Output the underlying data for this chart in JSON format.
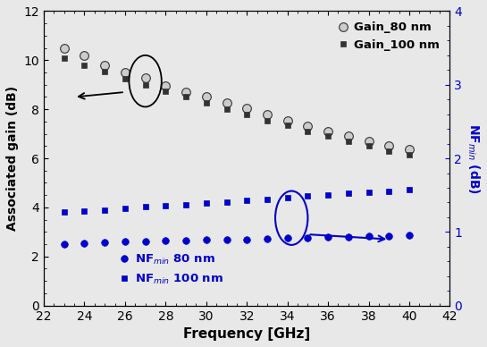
{
  "freq": [
    23,
    24,
    25,
    26,
    27,
    28,
    29,
    30,
    31,
    32,
    33,
    34,
    35,
    36,
    37,
    38,
    39,
    40
  ],
  "gain_80nm": [
    10.5,
    10.2,
    9.8,
    9.5,
    9.3,
    8.95,
    8.7,
    8.5,
    8.25,
    8.05,
    7.8,
    7.55,
    7.3,
    7.1,
    6.9,
    6.7,
    6.5,
    6.35
  ],
  "gain_100nm": [
    10.1,
    9.8,
    9.55,
    9.25,
    9.0,
    8.75,
    8.5,
    8.25,
    8.0,
    7.8,
    7.55,
    7.35,
    7.1,
    6.9,
    6.7,
    6.5,
    6.3,
    6.15
  ],
  "nf_80nm": [
    2.5,
    2.55,
    2.58,
    2.6,
    2.62,
    2.63,
    2.65,
    2.67,
    2.68,
    2.7,
    2.72,
    2.75,
    2.77,
    2.78,
    2.8,
    2.82,
    2.83,
    2.85
  ],
  "nf_100nm": [
    3.8,
    3.85,
    3.9,
    3.97,
    4.02,
    4.07,
    4.12,
    4.17,
    4.22,
    4.28,
    4.33,
    4.4,
    4.47,
    4.52,
    4.57,
    4.62,
    4.67,
    4.72
  ],
  "gain_color": "#333333",
  "nf_color": "#0000cc",
  "bg_color": "#e8e8e8",
  "xlim": [
    22,
    42
  ],
  "ylim_left": [
    0,
    12
  ],
  "ylim_right": [
    0,
    4
  ],
  "xlabel": "Frequency [GHz]",
  "ylabel_left": "Associated gain (dB)",
  "ylabel_right": "NF$_{min}$ (dB)",
  "legend_gain_80": "Gain_80 nm",
  "legend_gain_100": "Gain_100 nm",
  "legend_nf_80": "NF$_{min}$ 80 nm",
  "legend_nf_100": "NF$_{min}$ 100 nm",
  "xticks": [
    22,
    24,
    26,
    28,
    30,
    32,
    34,
    36,
    38,
    40,
    42
  ],
  "yticks_left": [
    0,
    2,
    4,
    6,
    8,
    10,
    12
  ],
  "yticks_right": [
    0,
    1,
    2,
    3,
    4
  ]
}
